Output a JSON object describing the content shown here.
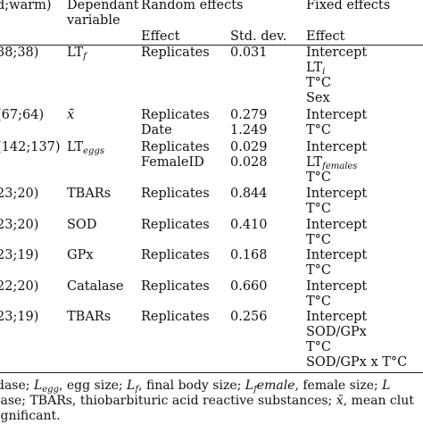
{
  "header": {
    "col0": "d;warm)",
    "col1_line1": "Dependant",
    "col1_line2": "variable",
    "col2": "Random effects",
    "col2_sub_effect": "Effect",
    "col3_sub_std": "Std. dev.",
    "col4": "Fixed effects",
    "col4_sub_effect": "Effect"
  },
  "rows": [
    {
      "n": "38;38)",
      "dep_main": "LT",
      "dep_sub": "f",
      "rand": [
        "Replicates"
      ],
      "std": [
        "0.031"
      ],
      "fixed": [
        {
          "main": "Intercept"
        },
        {
          "main": "LT",
          "sub": "i"
        },
        {
          "main": "T°C"
        },
        {
          "main": "Sex"
        }
      ]
    },
    {
      "n": "(67;64)",
      "dep_main": "x̄",
      "rand": [
        "Replicates",
        "Date"
      ],
      "std": [
        "0.279",
        "1.249"
      ],
      "fixed": [
        {
          "main": "Intercept"
        },
        {
          "main": "T°C"
        }
      ]
    },
    {
      "n": "(142;137)",
      "dep_main": "LT",
      "dep_sub": "eggs",
      "rand": [
        "Replicates",
        "FemaleID"
      ],
      "std": [
        "0.029",
        "0.028"
      ],
      "fixed": [
        {
          "main": "Intercept"
        },
        {
          "main": "LT",
          "sub": "females"
        },
        {
          "main": "T°C"
        }
      ]
    },
    {
      "n": "23;20)",
      "dep_main": "TBARs",
      "rand": [
        "Replicates"
      ],
      "std": [
        "0.844"
      ],
      "fixed": [
        {
          "main": "Intercept"
        },
        {
          "main": "T°C"
        }
      ]
    },
    {
      "n": "23;20)",
      "dep_main": "SOD",
      "rand": [
        "Replicates"
      ],
      "std": [
        "0.410"
      ],
      "fixed": [
        {
          "main": "Intercept"
        },
        {
          "main": "T°C"
        }
      ]
    },
    {
      "n": "23;19)",
      "dep_main": "GPx",
      "rand": [
        "Replicates"
      ],
      "std": [
        "0.168"
      ],
      "fixed": [
        {
          "main": "Intercept"
        },
        {
          "main": "T°C"
        }
      ]
    },
    {
      "n": "22;20)",
      "dep_main": "Catalase",
      "rand": [
        "Replicates"
      ],
      "std": [
        "0.660"
      ],
      "fixed": [
        {
          "main": "Intercept"
        },
        {
          "main": "T°C"
        }
      ]
    },
    {
      "n": "23;19)",
      "dep_main": "TBARs",
      "rand": [
        "Replicates"
      ],
      "std": [
        "0.256"
      ],
      "fixed": [
        {
          "main": "Intercept"
        },
        {
          "main": "SOD/GPx"
        },
        {
          "main": "T°C"
        },
        {
          "main": "SOD/GPx x T°C"
        }
      ]
    }
  ],
  "footnote": {
    "line1_a": "dase;",
    "line1_b_main": "L",
    "line1_b_sub": "egg",
    "line1_c": ", egg size;",
    "line1_d_main": "L",
    "line1_d_sub": "f",
    "line1_e": ", final body size;",
    "line1_f_main": "L",
    "line1_f_sub": "f",
    "line1_g": "emale",
    "line1_h": ", female size;",
    "line1_i": "L",
    "line2_a": "lase; TBARs, thiobarbituric acid reactive substances;",
    "line2_b": "x̄",
    "line2_c": ", mean clut",
    "line3": "ignificant."
  }
}
